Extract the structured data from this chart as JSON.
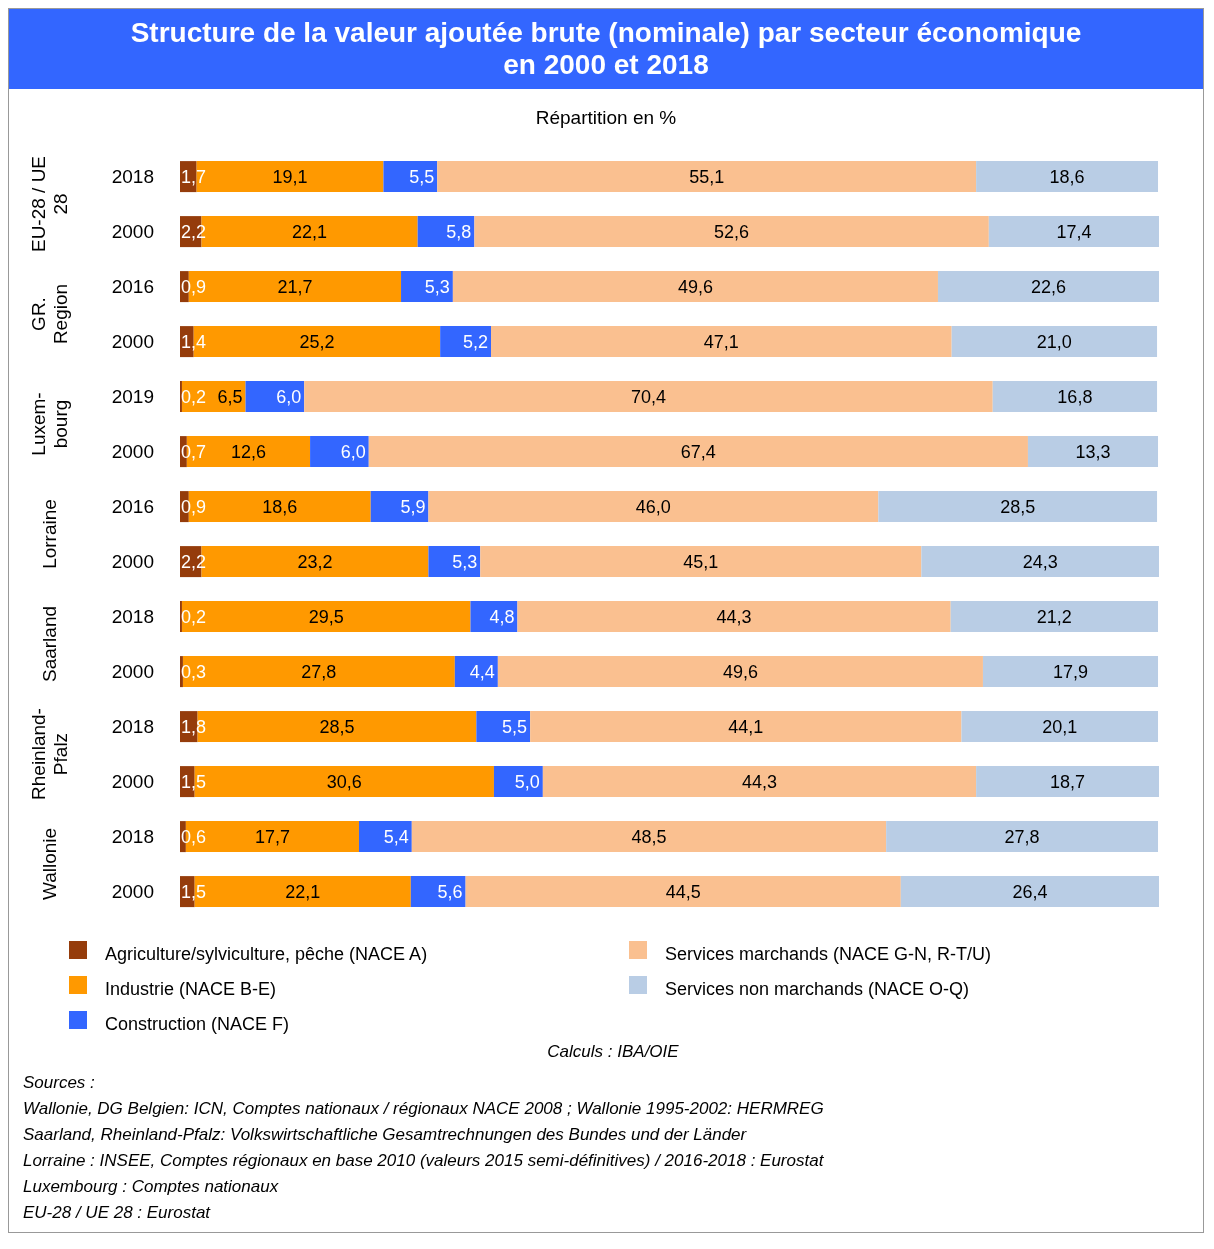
{
  "chart_data": {
    "type": "bar",
    "orientation": "horizontal",
    "stacked": true,
    "title": "Structure de la valeur ajoutée brute (nominale) par secteur économique en 2000 et 2018",
    "subtitle": "Répartition en %",
    "categories": [
      "2018",
      "2000",
      "2016",
      "2000",
      "2019",
      "2000",
      "2016",
      "2000",
      "2018",
      "2000",
      "2018",
      "2000",
      "2018",
      "2000"
    ],
    "series": [
      {
        "name": "Agriculture/sylviculture, pêche (NACE A)",
        "color": "#953c0b",
        "values": [
          1.7,
          2.2,
          0.9,
          1.4,
          0.2,
          0.7,
          0.9,
          2.2,
          0.2,
          0.3,
          1.8,
          1.5,
          0.6,
          1.5
        ],
        "value_labels": [
          "1,7",
          "2,2",
          "0,9",
          "1,4",
          "0,2",
          "0,7",
          "0,9",
          "2,2",
          "0,2",
          "0,3",
          "1,8",
          "1,5",
          "0,6",
          "1,5"
        ]
      },
      {
        "name": "Industrie (NACE B-E)",
        "color": "#ff9900",
        "values": [
          19.1,
          22.1,
          21.7,
          25.2,
          6.5,
          12.6,
          18.6,
          23.2,
          29.5,
          27.8,
          28.5,
          30.6,
          17.7,
          22.1
        ],
        "value_labels": [
          "19,1",
          "22,1",
          "21,7",
          "25,2",
          "6,5",
          "12,6",
          "18,6",
          "23,2",
          "29,5",
          "27,8",
          "28,5",
          "30,6",
          "17,7",
          "22,1"
        ]
      },
      {
        "name": "Construction (NACE F)",
        "color": "#3366ff",
        "values": [
          5.5,
          5.8,
          5.3,
          5.2,
          6.0,
          6.0,
          5.9,
          5.3,
          4.8,
          4.4,
          5.5,
          5.0,
          5.4,
          5.6
        ],
        "value_labels": [
          "5,5",
          "5,8",
          "5,3",
          "5,2",
          "6,0",
          "6,0",
          "5,9",
          "5,3",
          "4,8",
          "4,4",
          "5,5",
          "5,0",
          "5,4",
          "5,6"
        ]
      },
      {
        "name": "Services marchands (NACE G-N, R-T/U)",
        "color": "#fac090",
        "values": [
          55.1,
          52.6,
          49.6,
          47.1,
          70.4,
          67.4,
          46.0,
          45.1,
          44.3,
          49.6,
          44.1,
          44.3,
          48.5,
          44.5
        ],
        "value_labels": [
          "55,1",
          "52,6",
          "49,6",
          "47,1",
          "70,4",
          "67,4",
          "46,0",
          "45,1",
          "44,3",
          "49,6",
          "44,1",
          "44,3",
          "48,5",
          "44,5"
        ]
      },
      {
        "name": "Services non marchands (NACE O-Q)",
        "color": "#b9cde5",
        "values": [
          18.6,
          17.4,
          22.6,
          21.0,
          16.8,
          13.3,
          28.5,
          24.3,
          21.2,
          17.9,
          20.1,
          18.7,
          27.8,
          26.4
        ],
        "value_labels": [
          "18,6",
          "17,4",
          "22,6",
          "21,0",
          "16,8",
          "13,3",
          "28,5",
          "24,3",
          "21,2",
          "17,9",
          "20,1",
          "18,7",
          "27,8",
          "26,4"
        ]
      }
    ],
    "tick_labels": "y",
    "legend": "bottom",
    "annotations": [
      "EU-28 / UE 28",
      "GR. Region",
      "Luxem-bourg",
      "Lorraine",
      "Saarland",
      "Rheinland-Pfalz",
      "Wallonie",
      "Calculs : IBA/OIE",
      "Sources :",
      "Wallonie, DG Belgien: ICN, Comptes nationaux / régionaux NACE 2008 ; Wallonie 1995-2002: HERMREG",
      "Saarland, Rheinland-Pfalz: Volkswirtschaftliche Gesamtrechnungen des Bundes und der Länder",
      "Lorraine : INSEE, Comptes régionaux en base 2010 (valeurs 2015 semi-définitives) / 2016-2018 : Eurostat",
      "Luxembourg : Comptes nationaux",
      "EU-28 / UE 28 : Eurostat"
    ]
  }
}
